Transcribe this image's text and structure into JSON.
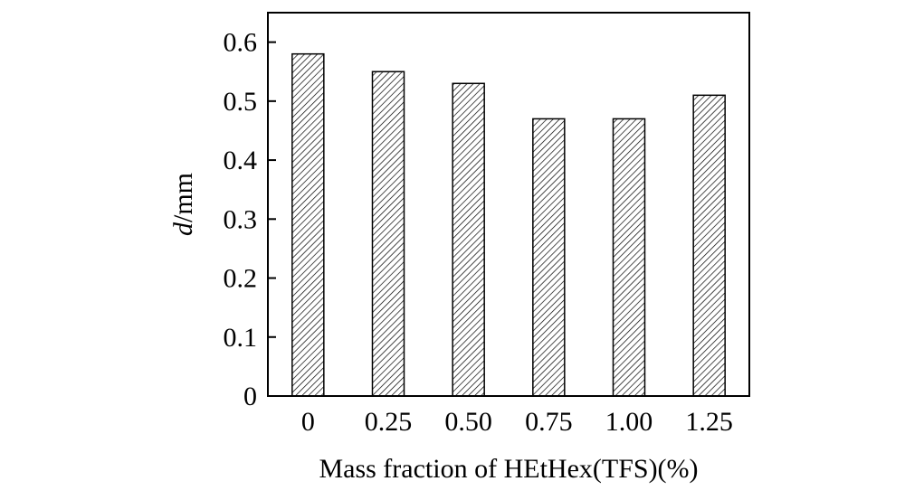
{
  "chart_data": {
    "type": "bar",
    "categories": [
      "0",
      "0.25",
      "0.50",
      "0.75",
      "1.00",
      "1.25"
    ],
    "values": [
      0.58,
      0.55,
      0.53,
      0.47,
      0.47,
      0.51
    ],
    "xlabel": "Mass fraction of HEtHex(TFS)(%)",
    "ylabel_var": "d",
    "ylabel_unit": "/mm",
    "ylim": [
      0,
      0.65
    ],
    "yticks": [
      "0",
      "0.1",
      "0.2",
      "0.3",
      "0.4",
      "0.5",
      "0.6"
    ],
    "bar_pattern": "diagonal-hatch",
    "grid": false,
    "legend": "none",
    "colors": {
      "bar_fill": "#ffffff",
      "hatch": "#000000",
      "axis": "#000000"
    }
  }
}
